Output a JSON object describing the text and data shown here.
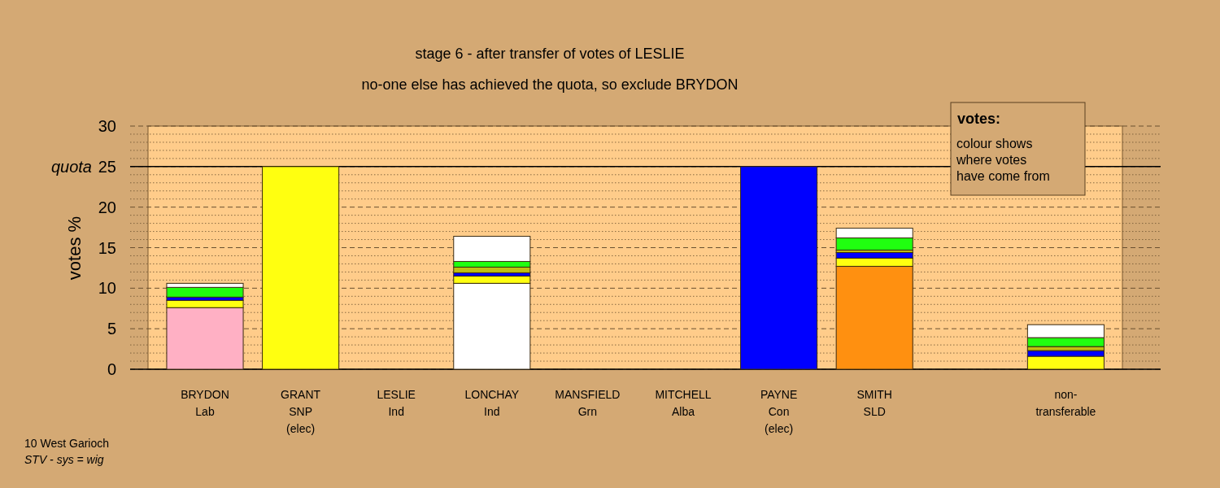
{
  "chart_data": {
    "type": "bar",
    "stacked": true,
    "title": "stage 6 - after transfer of votes of LESLIE",
    "subtitle": "no-one else has achieved the quota, so exclude BRYDON",
    "ylabel": "votes %",
    "categories": [
      "BRYDON\nLab",
      "GRANT\nSNP\n(elec)",
      "LESLIE\nInd",
      "LONCHAY\nInd",
      "MANSFIELD\nGrn",
      "MITCHELL\nAlba",
      "PAYNE\nCon\n(elec)",
      "SMITH\nSLD",
      null,
      "non-\ntransferable"
    ],
    "series": [
      {
        "colors": [
          "#ffb0c4",
          "#ffff10",
          null,
          "#ffffff",
          null,
          null,
          "#0000ff",
          "#ff9010",
          null,
          null
        ],
        "values": [
          7.6,
          25,
          0,
          10.6,
          0,
          0,
          25,
          12.7,
          null,
          0
        ]
      },
      {
        "color": "#ffff10",
        "values": [
          0.9,
          0,
          0,
          0.9,
          0,
          0,
          0,
          1.0,
          null,
          1.6
        ]
      },
      {
        "color": "#0000ff",
        "values": [
          0.4,
          0,
          0,
          0.4,
          0,
          0,
          0,
          0.7,
          null,
          0.7
        ]
      },
      {
        "color": "#c0c010",
        "values": [
          0,
          0,
          0,
          0.7,
          0,
          0,
          0,
          0.3,
          null,
          0.5
        ]
      },
      {
        "color": "#20ff10",
        "values": [
          1.2,
          0,
          0,
          0.7,
          0,
          0,
          0,
          1.5,
          null,
          1.1
        ]
      },
      {
        "color": "#ffffff",
        "values": [
          0.5,
          0,
          0,
          3.1,
          0,
          0,
          0,
          1.2,
          null,
          1.6
        ]
      }
    ],
    "ylim": [
      0,
      30
    ],
    "yticks": [
      0,
      {
        "value": 1,
        "label": null
      },
      {
        "value": 2,
        "label": null
      },
      {
        "value": 3,
        "label": null
      },
      {
        "value": 4,
        "label": null
      },
      5,
      {
        "value": 6,
        "label": null
      },
      {
        "value": 7,
        "label": null
      },
      {
        "value": 8,
        "label": null
      },
      {
        "value": 9,
        "label": null
      },
      10,
      {
        "value": 11,
        "label": null
      },
      {
        "value": 12,
        "label": null
      },
      {
        "value": 13,
        "label": null
      },
      {
        "value": 14,
        "label": null
      },
      15,
      {
        "value": 16,
        "label": null
      },
      {
        "value": 17,
        "label": null
      },
      {
        "value": 18,
        "label": null
      },
      {
        "value": 19,
        "label": null
      },
      20,
      {
        "value": 21,
        "label": null
      },
      {
        "value": 22,
        "label": null
      },
      {
        "value": 23,
        "label": null
      },
      {
        "value": 24,
        "label": null
      },
      25,
      {
        "value": 26,
        "label": null
      },
      {
        "value": 27,
        "label": null
      },
      {
        "value": 28,
        "label": null
      },
      {
        "value": 29,
        "label": null
      },
      30
    ],
    "grid": "y",
    "ref_lines": [
      {
        "axis": "y",
        "value": 25,
        "label": "quota",
        "color": "#000000",
        "line_style": "solid"
      }
    ],
    "annotations": [
      "votes:",
      "colour shows\nwhere votes\nhave come from",
      "10 West Garioch",
      "STV - sys = wig"
    ]
  }
}
